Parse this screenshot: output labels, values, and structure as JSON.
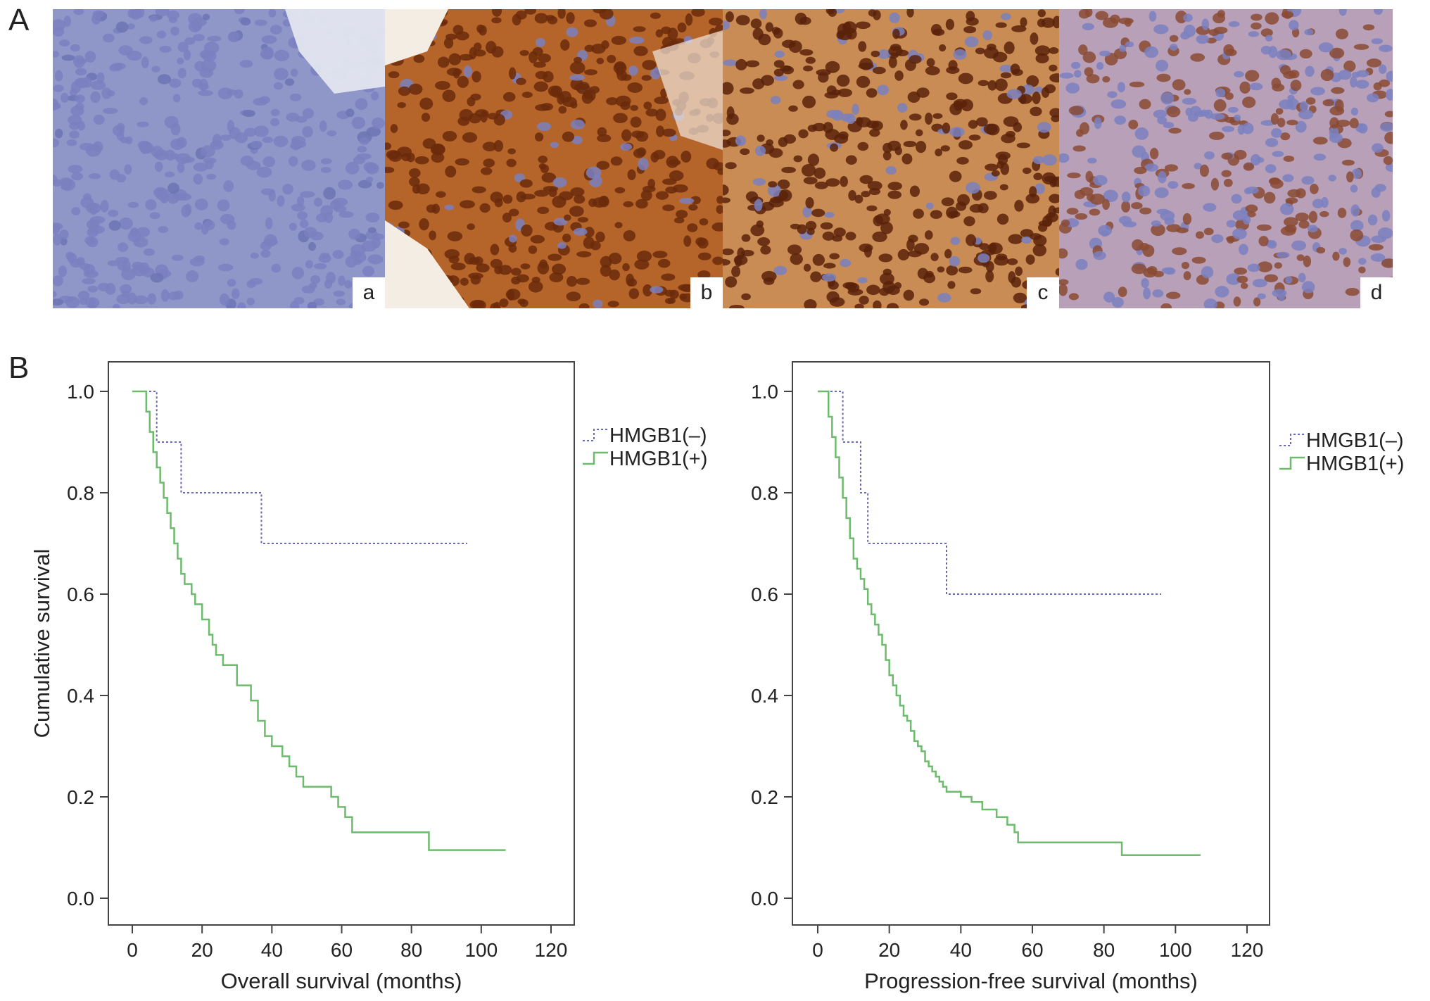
{
  "panels": {
    "A": "A",
    "B": "B"
  },
  "micrographs": [
    {
      "tag": "a",
      "stain": "#8f97c9",
      "nuclei": "#6c74b3",
      "ratio": 0.08
    },
    {
      "tag": "b",
      "stain": "#b5652a",
      "nuclei": "#6b2a0b",
      "ratio": 0.9
    },
    {
      "tag": "c",
      "stain": "#c98c55",
      "nuclei": "#5a220a",
      "ratio": 0.85
    },
    {
      "tag": "d",
      "stain": "#b9a0b9",
      "nuclei": "#8a4a33",
      "ratio": 0.55
    }
  ],
  "legend": {
    "neg": "HMGB1(–)",
    "pos": "HMGB1(+)"
  },
  "colors": {
    "neg": "#6a6aa8",
    "pos": "#6dbb6d"
  },
  "chart_data": [
    {
      "type": "line",
      "step": true,
      "ylabel": "Cumulative survival",
      "xlabel": "Overall survival (months)",
      "xlim": [
        0,
        120
      ],
      "ylim": [
        0,
        1
      ],
      "xticks": [
        "0",
        "20",
        "40",
        "60",
        "80",
        "100",
        "120"
      ],
      "yticks": [
        "0.0",
        "0.2",
        "0.4",
        "0.6",
        "0.8",
        "1.0"
      ],
      "legend_position": "right",
      "series": [
        {
          "name": "HMGB1(–)",
          "style": "dotted",
          "x": [
            0,
            7,
            14,
            37,
            96
          ],
          "y": [
            1.0,
            0.9,
            0.8,
            0.7,
            0.7
          ]
        },
        {
          "name": "HMGB1(+)",
          "style": "solid",
          "x": [
            0,
            4,
            5,
            6,
            7,
            8,
            9,
            10,
            11,
            12,
            13,
            14,
            15,
            17,
            18,
            20,
            22,
            23,
            24,
            26,
            30,
            34,
            36,
            38,
            40,
            43,
            45,
            47,
            49,
            57,
            59,
            61,
            63,
            85,
            107
          ],
          "y": [
            1.0,
            0.96,
            0.92,
            0.88,
            0.85,
            0.82,
            0.79,
            0.76,
            0.73,
            0.7,
            0.67,
            0.64,
            0.62,
            0.6,
            0.58,
            0.55,
            0.52,
            0.5,
            0.48,
            0.46,
            0.42,
            0.39,
            0.35,
            0.32,
            0.3,
            0.28,
            0.26,
            0.24,
            0.22,
            0.2,
            0.18,
            0.16,
            0.13,
            0.095,
            0.095
          ]
        }
      ]
    },
    {
      "type": "line",
      "step": true,
      "ylabel": "",
      "xlabel": "Progression-free survival (months)",
      "xlim": [
        0,
        120
      ],
      "ylim": [
        0,
        1
      ],
      "xticks": [
        "0",
        "20",
        "40",
        "60",
        "80",
        "100",
        "120"
      ],
      "yticks": [
        "0.0",
        "0.2",
        "0.4",
        "0.6",
        "0.8",
        "1.0"
      ],
      "legend_position": "right",
      "series": [
        {
          "name": "HMGB1(–)",
          "style": "dotted",
          "x": [
            0,
            7,
            12,
            14,
            36,
            96
          ],
          "y": [
            1.0,
            0.9,
            0.8,
            0.7,
            0.6,
            0.6
          ]
        },
        {
          "name": "HMGB1(+)",
          "style": "solid",
          "x": [
            0,
            3,
            4,
            5,
            6,
            7,
            8,
            9,
            10,
            11,
            12,
            13,
            14,
            15,
            16,
            17,
            18,
            19,
            20,
            21,
            22,
            23,
            24,
            25,
            26,
            27,
            28,
            29,
            30,
            31,
            32,
            33,
            34,
            35,
            36,
            37,
            40,
            43,
            46,
            50,
            53,
            55,
            56,
            85,
            107
          ],
          "y": [
            1.0,
            0.95,
            0.91,
            0.87,
            0.83,
            0.79,
            0.75,
            0.71,
            0.67,
            0.65,
            0.63,
            0.61,
            0.58,
            0.56,
            0.54,
            0.52,
            0.5,
            0.47,
            0.44,
            0.42,
            0.4,
            0.38,
            0.36,
            0.35,
            0.33,
            0.31,
            0.3,
            0.29,
            0.27,
            0.26,
            0.25,
            0.24,
            0.23,
            0.22,
            0.21,
            0.21,
            0.2,
            0.19,
            0.175,
            0.16,
            0.145,
            0.13,
            0.11,
            0.085,
            0.085
          ]
        }
      ]
    }
  ]
}
